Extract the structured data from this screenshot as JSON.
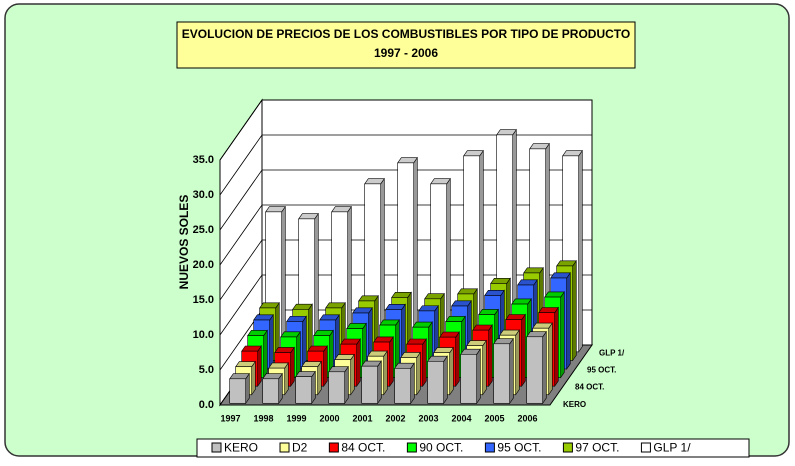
{
  "chart_data": {
    "type": "bar3d",
    "title": "EVOLUCION DE PRECIOS DE LOS COMBUSTIBLES POR TIPO DE PRODUCTO",
    "subtitle": "1997 - 2006",
    "y_label": "NUEVOS SOLES",
    "categories": [
      "1997",
      "1998",
      "1999",
      "2000",
      "2001",
      "2002",
      "2003",
      "2004",
      "2005",
      "2006"
    ],
    "z_categories": [
      "KERO",
      null,
      "84 OCT.",
      null,
      "95 OCT.",
      null,
      "GLP 1/"
    ],
    "series": [
      {
        "name": "KERO",
        "color": "#c0c0c0",
        "values": [
          3.5,
          3.5,
          3.8,
          4.5,
          5.3,
          5.0,
          6.0,
          7.0,
          8.5,
          9.5
        ]
      },
      {
        "name": "D2",
        "color": "#ffff99",
        "values": [
          4.0,
          3.8,
          4.0,
          5.0,
          5.5,
          5.3,
          6.0,
          7.0,
          8.5,
          9.5
        ]
      },
      {
        "name": "84 OCT.",
        "color": "#ff0000",
        "values": [
          5.0,
          4.8,
          5.0,
          6.0,
          6.3,
          6.0,
          7.0,
          8.0,
          9.5,
          10.5
        ]
      },
      {
        "name": "90 OCT.",
        "color": "#00ff00",
        "values": [
          6.0,
          5.8,
          6.0,
          7.0,
          7.5,
          7.2,
          8.0,
          9.0,
          10.5,
          11.5
        ]
      },
      {
        "name": "95 OCT.",
        "color": "#3366ff",
        "values": [
          7.0,
          6.8,
          7.0,
          8.0,
          8.5,
          8.3,
          9.0,
          10.5,
          12.0,
          13.0
        ]
      },
      {
        "name": "97 OCT.",
        "color": "#99cc00",
        "values": [
          7.5,
          7.3,
          7.5,
          8.5,
          9.0,
          8.8,
          9.5,
          11.0,
          12.5,
          13.5
        ]
      },
      {
        "name": "GLP 1/",
        "color": "#ffffff",
        "values": [
          20.0,
          19.0,
          20.0,
          24.0,
          27.0,
          24.0,
          28.0,
          31.0,
          29.0,
          28.0
        ]
      }
    ],
    "ylim": [
      0,
      35
    ],
    "yticks": [
      {
        "value": 0,
        "label": "0.0"
      },
      {
        "value": 5,
        "label": "5.0"
      },
      {
        "value": 10,
        "label": "10.0"
      },
      {
        "value": 15,
        "label": "15.0"
      },
      {
        "value": 20,
        "label": "20.0"
      },
      {
        "value": 25,
        "label": "25.0"
      },
      {
        "value": 30,
        "label": "30.0"
      },
      {
        "value": 35,
        "label": "35.0"
      }
    ],
    "grid": true,
    "legend": "bottom"
  }
}
